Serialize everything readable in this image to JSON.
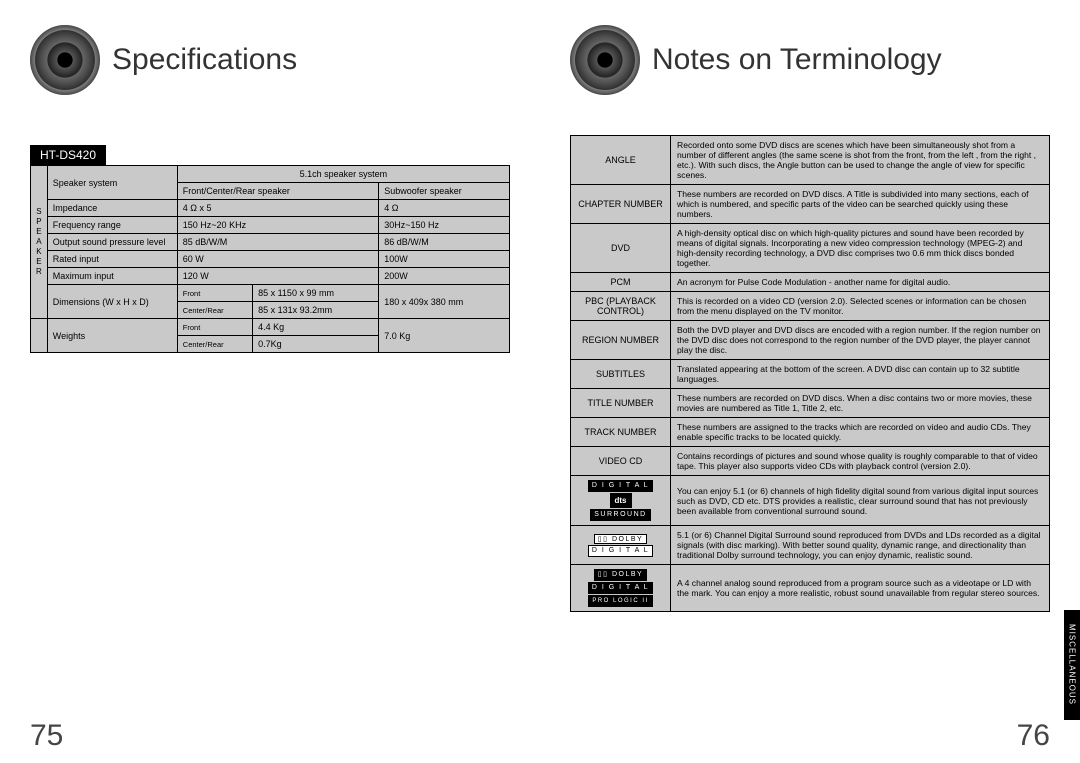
{
  "left": {
    "title": "Specifications",
    "model": "HT-DS420",
    "page_num": "75",
    "spec": {
      "side_label_letters": [
        "S",
        "P",
        "E",
        "A",
        "K",
        "E",
        "R"
      ],
      "system_header": "5.1ch speaker system",
      "col_speaker_system": "Speaker system",
      "col_fcr": "Front/Center/Rear speaker",
      "col_sub": "Subwoofer speaker",
      "rows": [
        {
          "label": "Impedance",
          "a": "4 Ω x 5",
          "b": "4 Ω"
        },
        {
          "label": "Frequency range",
          "a": "150 Hz~20 KHz",
          "b": "30Hz~150 Hz"
        },
        {
          "label": "Output sound pressure level",
          "a": "85 dB/W/M",
          "b": "86 dB/W/M"
        },
        {
          "label": "Rated input",
          "a": "60 W",
          "b": "100W"
        },
        {
          "label": "Maximum input",
          "a": "120 W",
          "b": "200W"
        }
      ],
      "dim_label": "Dimensions  (W x H x D)",
      "dim_front_lbl": "Front",
      "dim_front_val": "85 x 1150 x 99 mm",
      "dim_cr_lbl": "Center/Rear",
      "dim_cr_val": "85 x 131x 93.2mm",
      "dim_sub": "180 x 409x 380 mm",
      "wt_label": "Weights",
      "wt_front_lbl": "Front",
      "wt_front_val": "4.4 Kg",
      "wt_cr_lbl": "Center/Rear",
      "wt_cr_val": "0.7Kg",
      "wt_sub": "7.0 Kg"
    }
  },
  "right": {
    "title": "Notes on Terminology",
    "page_num": "76",
    "side_tab": "MISCELLANEOUS",
    "terms": [
      {
        "key": "ANGLE",
        "val": "Recorded onto some DVD discs are scenes which have been simultaneously shot from a number of different angles (the same scene is shot from the front, from the left , from the right , etc.). With such discs, the Angle button can be used to change the angle of view for specific scenes."
      },
      {
        "key": "CHAPTER NUMBER",
        "val": "These numbers are recorded on DVD discs. A Title is subdivided into many sections, each of which is numbered, and specific parts of the video can be searched quickly using these numbers."
      },
      {
        "key": "DVD",
        "val": "A high-density optical disc on which high-quality pictures and sound have been recorded by means of digital signals. Incorporating a new video compression technology (MPEG-2) and high-density recording technology, a DVD disc comprises  two 0.6 mm thick discs bonded together."
      },
      {
        "key": "PCM",
        "val": "An acronym for Pulse Code Modulation - another name for digital audio."
      },
      {
        "key": "PBC (PLAYBACK CONTROL)",
        "val": "This is recorded on a video CD (version 2.0). Selected scenes or information can be chosen from the menu displayed on the TV monitor."
      },
      {
        "key": "REGION NUMBER",
        "val": "Both the DVD player and DVD discs are encoded with a region number. If the region number on the DVD disc does not correspond to the region number of the DVD player, the player cannot play the disc."
      },
      {
        "key": "SUBTITLES",
        "val": "Translated appearing at the bottom of the screen. A DVD disc can contain up to 32 subtitle languages."
      },
      {
        "key": "TITLE NUMBER",
        "val": "These numbers are recorded on DVD discs.  When a disc contains two or more movies, these movies are numbered as Title 1, Title 2, etc."
      },
      {
        "key": "TRACK NUMBER",
        "val": "These numbers are assigned to the tracks which are recorded on video and audio CDs. They enable specific tracks to be located quickly."
      },
      {
        "key": "VIDEO CD",
        "val": "Contains recordings of pictures and sound whose quality is roughly comparable to that of video tape.\nThis player also supports video CDs with playback control (version 2.0)."
      }
    ],
    "dts_text": "You can enjoy 5.1 (or 6) channels of high fidelity digital sound from various digital input sources such as DVD, CD etc.\nDTS provides a realistic, clear surround sound that has not  previously been available from  conventional surround sound.",
    "dolby_text": "5.1 (or 6) Channel Digital Surround sound reproduced from DVDs and LDs recorded as a digital signals (with         disc marking). With better sound quality, dynamic range, and directionality than traditional Dolby surround technology, you can enjoy dynamic, realistic sound.",
    "prologic_text": "A 4 channel analog sound reproduced from a program source such as a videotape or LD with the         mark. You can enjoy a more realistic, robust sound unavailable from regular stereo sources.",
    "logo_dts_top": "D I G I T A L",
    "logo_dts_mid": "dts",
    "logo_dts_bot": "SURROUND",
    "logo_dolby_top": "DOLBY",
    "logo_dolby_bot": "D I G I T A L",
    "logo_pl_top": "DOLBY",
    "logo_pl_mid": "D I G I T A L",
    "logo_pl_bot": "PRO LOGIC II"
  }
}
